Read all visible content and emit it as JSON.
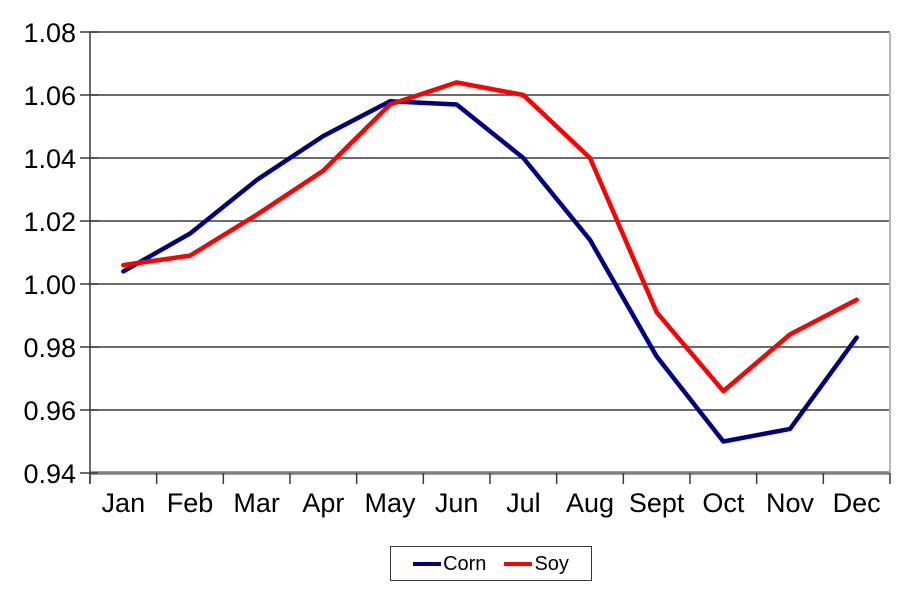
{
  "chart_data": {
    "type": "line",
    "title": "",
    "xlabel": "",
    "ylabel": "",
    "categories": [
      "Jan",
      "Feb",
      "Mar",
      "Apr",
      "May",
      "Jun",
      "Jul",
      "Aug",
      "Sept",
      "Oct",
      "Nov",
      "Dec"
    ],
    "series": [
      {
        "name": "Corn",
        "color": "#000080",
        "values": [
          1.004,
          1.016,
          1.033,
          1.047,
          1.058,
          1.057,
          1.04,
          1.014,
          0.977,
          0.95,
          0.954,
          0.983
        ]
      },
      {
        "name": "Soy",
        "color": "#FF0000",
        "values": [
          1.006,
          1.009,
          1.022,
          1.036,
          1.057,
          1.064,
          1.06,
          1.04,
          0.991,
          0.966,
          0.984,
          0.995
        ]
      }
    ],
    "ylim": [
      0.94,
      1.08
    ],
    "ytick_step": 0.02,
    "ytick_labels": [
      "0.94",
      "0.96",
      "0.98",
      "1.00",
      "1.02",
      "1.04",
      "1.06",
      "1.08"
    ],
    "grid": true,
    "legend_position": "bottom-center"
  },
  "legend": {
    "items": [
      {
        "label": "Corn"
      },
      {
        "label": "Soy"
      }
    ]
  },
  "colors": {
    "background": "#ffffff",
    "gridline": "#3a3a3a",
    "x_axis": "#808080",
    "right_border": "#b8b8b8",
    "text": "#000000"
  }
}
